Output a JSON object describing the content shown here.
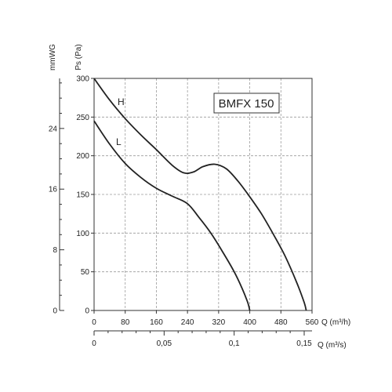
{
  "chart_data": {
    "type": "line",
    "model_label": "BMFX 150",
    "x_axis": {
      "label": "Q (m³/h)",
      "range": [
        0,
        560
      ],
      "ticks": [
        0,
        80,
        160,
        240,
        320,
        400,
        480,
        560
      ],
      "tick_labels": [
        "0",
        "80",
        "160",
        "240",
        "320",
        "400",
        "480",
        "560"
      ]
    },
    "x2_axis": {
      "label": "Q (m³/s)",
      "range": [
        0,
        0.1556
      ],
      "ticks": [
        0,
        0.05,
        0.1,
        0.15
      ],
      "tick_labels": [
        "0",
        "0,05",
        "0,1",
        "0,15"
      ],
      "minor_step": 0.01
    },
    "y_axis": {
      "label": "Ps (Pa)",
      "range": [
        0,
        300
      ],
      "ticks": [
        0,
        50,
        100,
        150,
        200,
        250,
        300
      ],
      "tick_labels": [
        "0",
        "50",
        "100",
        "150",
        "200",
        "250",
        "300"
      ]
    },
    "y2_axis": {
      "label": "mmWG",
      "range": [
        0,
        30.6
      ],
      "ticks": [
        0,
        8,
        16,
        24
      ],
      "tick_labels": [
        "0",
        "8",
        "16",
        "24"
      ]
    },
    "grid": true,
    "series": [
      {
        "name": "H",
        "x": [
          0,
          40,
          80,
          120,
          160,
          200,
          230,
          255,
          280,
          310,
          340,
          370,
          400,
          430,
          460,
          490,
          520,
          540,
          545
        ],
        "y": [
          300,
          272,
          248,
          227,
          208,
          188,
          178,
          179,
          186,
          189,
          183,
          167,
          147,
          125,
          99,
          71,
          37,
          10,
          0
        ]
      },
      {
        "name": "L",
        "x": [
          0,
          40,
          80,
          120,
          160,
          200,
          240,
          270,
          300,
          330,
          360,
          380,
          395,
          400
        ],
        "y": [
          245,
          215,
          190,
          172,
          158,
          148,
          138,
          120,
          100,
          76,
          50,
          29,
          10,
          0
        ]
      }
    ]
  }
}
